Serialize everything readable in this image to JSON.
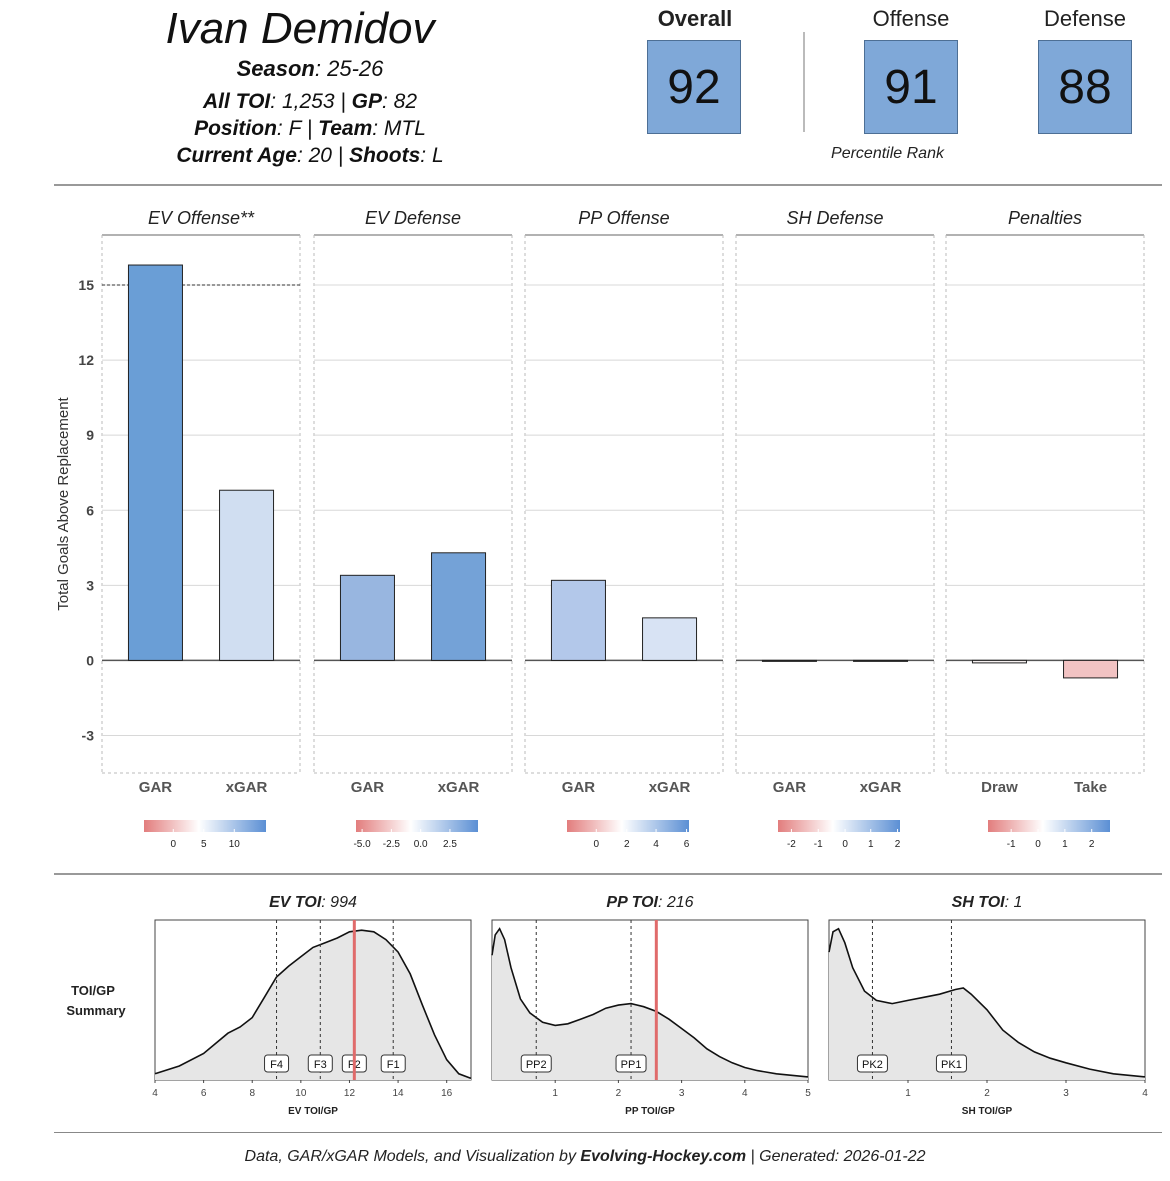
{
  "player": {
    "name": "Ivan Demidov",
    "season_label": "Season",
    "season": "25-26",
    "toi_label": "All TOI",
    "toi": "1,253",
    "gp_label": "GP",
    "gp": "82",
    "position_label": "Position",
    "position": "F",
    "team_label": "Team",
    "team": "MTL",
    "age_label": "Current Age",
    "age": "20",
    "shoots_label": "Shoots",
    "shoots": "L"
  },
  "scores": {
    "overall_label": "Overall",
    "overall": "92",
    "offense_label": "Offense",
    "offense": "91",
    "defense_label": "Defense",
    "defense": "88",
    "percentile_label": "Percentile Rank",
    "box_color": "#7fa8d8"
  },
  "chart_data": [
    {
      "type": "bar",
      "ylabel": "Total Goals Above Replacement",
      "ylim": [
        -4.5,
        17
      ],
      "yticks": [
        -3,
        0,
        3,
        6,
        9,
        12,
        15
      ],
      "grid": true,
      "reference_line": 15,
      "panels": [
        {
          "title": "EV Offense**",
          "categories": [
            "GAR",
            "xGAR"
          ],
          "values": [
            15.8,
            6.8
          ],
          "colors": [
            "#6a9ed6",
            "#d0def1"
          ],
          "scale": {
            "ticks": [
              "0",
              "5",
              "10"
            ],
            "positions": [
              0.24,
              0.49,
              0.74
            ]
          }
        },
        {
          "title": "EV Defense",
          "categories": [
            "GAR",
            "xGAR"
          ],
          "values": [
            3.4,
            4.3
          ],
          "colors": [
            "#98b6e0",
            "#74a2d7"
          ],
          "scale": {
            "ticks": [
              "-5.0",
              "-2.5",
              "0.0",
              "2.5"
            ],
            "positions": [
              0.05,
              0.29,
              0.53,
              0.77
            ]
          }
        },
        {
          "title": "PP Offense",
          "categories": [
            "GAR",
            "xGAR"
          ],
          "values": [
            3.2,
            1.7
          ],
          "colors": [
            "#b3c8ea",
            "#d8e3f4"
          ],
          "scale": {
            "ticks": [
              "0",
              "2",
              "4",
              "6"
            ],
            "positions": [
              0.24,
              0.49,
              0.73,
              0.98
            ]
          }
        },
        {
          "title": "SH Defense",
          "categories": [
            "GAR",
            "xGAR"
          ],
          "values": [
            0.0,
            0.0
          ],
          "colors": [
            "#f3f3f3",
            "#f3f3f3"
          ],
          "scale": {
            "ticks": [
              "-2",
              "-1",
              "0",
              "1",
              "2"
            ],
            "positions": [
              0.11,
              0.33,
              0.55,
              0.76,
              0.98
            ]
          }
        },
        {
          "title": "Penalties",
          "categories": [
            "Draw",
            "Take"
          ],
          "values": [
            -0.1,
            -0.7
          ],
          "colors": [
            "#f6f0f0",
            "#f2c3c3"
          ],
          "scale": {
            "ticks": [
              "-1",
              "0",
              "1",
              "2"
            ],
            "positions": [
              0.19,
              0.41,
              0.63,
              0.85
            ]
          }
        }
      ]
    },
    {
      "type": "area",
      "row_label": [
        "TOI/GP",
        "Summary"
      ],
      "panels": [
        {
          "title_bold": "EV TOI",
          "title_value": "994",
          "xlabel": "EV TOI/GP",
          "xlim": [
            4,
            17
          ],
          "xticks": [
            4,
            6,
            8,
            10,
            12,
            14,
            16
          ],
          "marker": 12.2,
          "lines": [
            {
              "label": "F4",
              "x": 9.0
            },
            {
              "label": "F3",
              "x": 10.8
            },
            {
              "label": "F2",
              "x": 12.2
            },
            {
              "label": "F1",
              "x": 13.8
            }
          ],
          "density": [
            [
              4,
              0.04
            ],
            [
              5,
              0.09
            ],
            [
              6,
              0.17
            ],
            [
              7,
              0.3
            ],
            [
              7.5,
              0.34
            ],
            [
              8,
              0.4
            ],
            [
              8.5,
              0.53
            ],
            [
              9,
              0.66
            ],
            [
              9.5,
              0.73
            ],
            [
              10,
              0.79
            ],
            [
              10.5,
              0.85
            ],
            [
              11,
              0.88
            ],
            [
              11.5,
              0.91
            ],
            [
              12,
              0.95
            ],
            [
              12.5,
              0.96
            ],
            [
              13,
              0.95
            ],
            [
              13.5,
              0.9
            ],
            [
              14,
              0.82
            ],
            [
              14.5,
              0.68
            ],
            [
              15,
              0.48
            ],
            [
              15.5,
              0.29
            ],
            [
              16,
              0.13
            ],
            [
              16.5,
              0.04
            ],
            [
              17,
              0.01
            ]
          ]
        },
        {
          "title_bold": "PP TOI",
          "title_value": "216",
          "xlabel": "PP TOI/GP",
          "xlim": [
            0,
            5
          ],
          "xticks": [
            1,
            2,
            3,
            4,
            5
          ],
          "marker": 2.6,
          "lines": [
            {
              "label": "PP2",
              "x": 0.7
            },
            {
              "label": "PP1",
              "x": 2.2
            }
          ],
          "density": [
            [
              0,
              0.8
            ],
            [
              0.05,
              0.93
            ],
            [
              0.12,
              0.97
            ],
            [
              0.2,
              0.9
            ],
            [
              0.3,
              0.72
            ],
            [
              0.45,
              0.52
            ],
            [
              0.6,
              0.43
            ],
            [
              0.8,
              0.37
            ],
            [
              1.0,
              0.35
            ],
            [
              1.2,
              0.36
            ],
            [
              1.4,
              0.39
            ],
            [
              1.6,
              0.42
            ],
            [
              1.8,
              0.46
            ],
            [
              2.0,
              0.48
            ],
            [
              2.2,
              0.49
            ],
            [
              2.4,
              0.47
            ],
            [
              2.6,
              0.44
            ],
            [
              2.8,
              0.39
            ],
            [
              3.0,
              0.33
            ],
            [
              3.2,
              0.27
            ],
            [
              3.4,
              0.2
            ],
            [
              3.6,
              0.15
            ],
            [
              3.8,
              0.11
            ],
            [
              4.0,
              0.08
            ],
            [
              4.2,
              0.06
            ],
            [
              4.5,
              0.04
            ],
            [
              5,
              0.02
            ]
          ]
        },
        {
          "title_bold": "SH TOI",
          "title_value": "1",
          "xlabel": "SH TOI/GP",
          "xlim": [
            0,
            4
          ],
          "xticks": [
            1,
            2,
            3,
            4
          ],
          "marker": null,
          "lines": [
            {
              "label": "PK2",
              "x": 0.55
            },
            {
              "label": "PK1",
              "x": 1.55
            }
          ],
          "density": [
            [
              0,
              0.82
            ],
            [
              0.05,
              0.95
            ],
            [
              0.12,
              0.97
            ],
            [
              0.2,
              0.88
            ],
            [
              0.3,
              0.72
            ],
            [
              0.45,
              0.57
            ],
            [
              0.6,
              0.51
            ],
            [
              0.8,
              0.49
            ],
            [
              1.0,
              0.51
            ],
            [
              1.2,
              0.53
            ],
            [
              1.4,
              0.55
            ],
            [
              1.6,
              0.58
            ],
            [
              1.7,
              0.59
            ],
            [
              1.8,
              0.55
            ],
            [
              2.0,
              0.45
            ],
            [
              2.2,
              0.32
            ],
            [
              2.4,
              0.24
            ],
            [
              2.6,
              0.18
            ],
            [
              2.8,
              0.14
            ],
            [
              3.0,
              0.11
            ],
            [
              3.3,
              0.07
            ],
            [
              3.6,
              0.04
            ],
            [
              4.0,
              0.02
            ]
          ]
        }
      ],
      "marker_color": "#e06b6b"
    }
  ],
  "footer": {
    "prefix": "Data, GAR/xGAR Models, and Visualization by ",
    "site": "Evolving-Hockey.com",
    "suffix": " | Generated: 2026-01-22"
  }
}
